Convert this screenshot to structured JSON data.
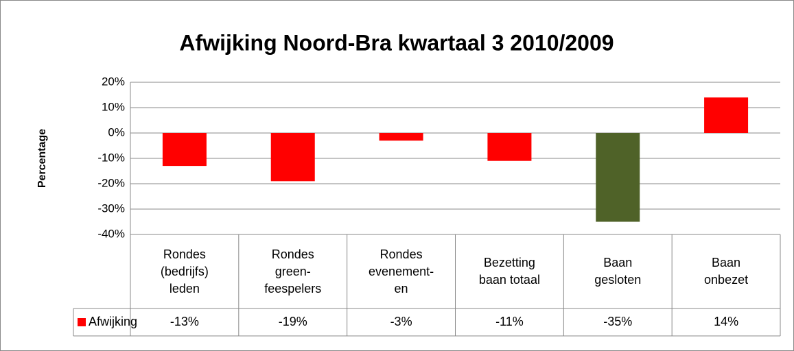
{
  "chart_data": {
    "type": "bar",
    "title": "Afwijking Noord-Bra kwartaal 3 2010/2009",
    "y_label": "Percentage",
    "categories": [
      "Rondes\n(bedrijfs)\nleden",
      "Rondes\ngreen-\nfeespelers",
      "Rondes\nevenement-\nen",
      "Bezetting\nbaan totaal",
      "Baan\ngesloten",
      "Baan\nonbezet"
    ],
    "series": [
      {
        "name": "Afwijking",
        "color": "#ff0000",
        "point_colors": [
          "#ff0000",
          "#ff0000",
          "#ff0000",
          "#ff0000",
          "#4f6228",
          "#ff0000"
        ],
        "values": [
          -13,
          -19,
          -3,
          -11,
          -35,
          14
        ],
        "value_labels": [
          "-13%",
          "-19%",
          "-3%",
          "-11%",
          "-35%",
          "14%"
        ]
      }
    ],
    "ylim": [
      -40,
      20
    ],
    "yticks": [
      {
        "value": -40,
        "label": "-40%"
      },
      {
        "value": -30,
        "label": "-30%"
      },
      {
        "value": -20,
        "label": "-20%"
      },
      {
        "value": -10,
        "label": "-10%"
      },
      {
        "value": 0,
        "label": "0%"
      },
      {
        "value": 10,
        "label": "10%"
      },
      {
        "value": 20,
        "label": "20%"
      }
    ],
    "grid": true
  }
}
